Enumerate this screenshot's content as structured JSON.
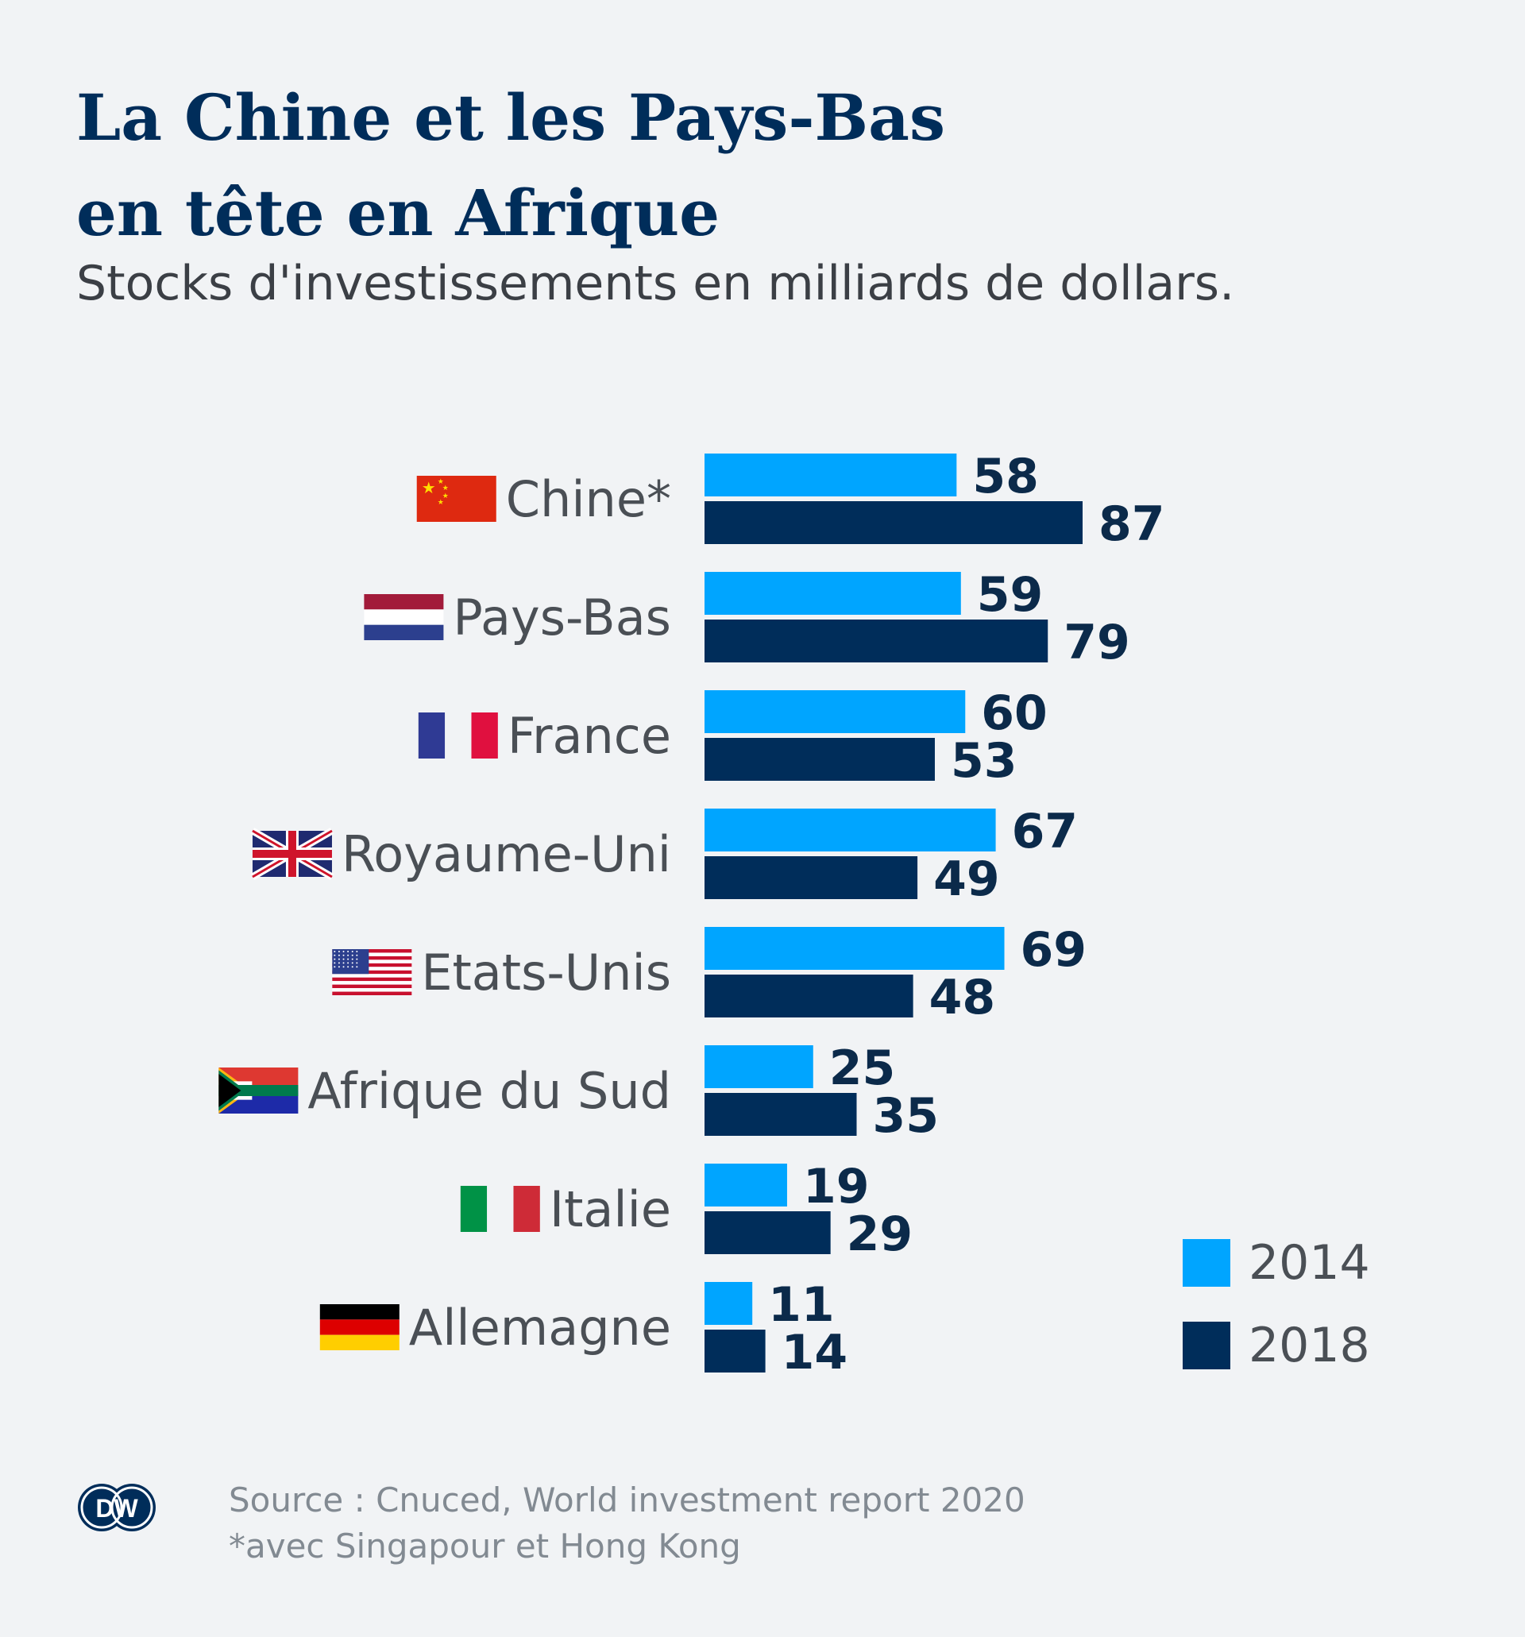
{
  "title_line1": "La Chine et les Pays-Bas",
  "title_line2": "en tête en Afrique",
  "subtitle": "Stocks d'investissements en milliards de dollars.",
  "source_line1": "Source : Cnuced, World investment report 2020",
  "source_line2": "*avec Singapour et Hong Kong",
  "logo_text": "DW",
  "colors": {
    "y2014": "#00a5ff",
    "y2018": "#002d5a",
    "label": "#4a4f55",
    "value": "#0b2a4a"
  },
  "chart_data": {
    "type": "bar",
    "orientation": "horizontal",
    "categories": [
      "Chine*",
      "Pays-Bas",
      "France",
      "Royaume-Uni",
      "Etats-Unis",
      "Afrique du Sud",
      "Italie",
      "Allemagne"
    ],
    "flags": [
      "china-flag-icon",
      "netherlands-flag-icon",
      "france-flag-icon",
      "uk-flag-icon",
      "usa-flag-icon",
      "south-africa-flag-icon",
      "italy-flag-icon",
      "germany-flag-icon"
    ],
    "series": [
      {
        "name": "2014",
        "values": [
          58,
          59,
          60,
          67,
          69,
          25,
          19,
          11
        ]
      },
      {
        "name": "2018",
        "values": [
          87,
          79,
          53,
          49,
          48,
          35,
          29,
          14
        ]
      }
    ],
    "legend_position": "bottom-right",
    "xlim": [
      0,
      87
    ],
    "grid": false
  }
}
